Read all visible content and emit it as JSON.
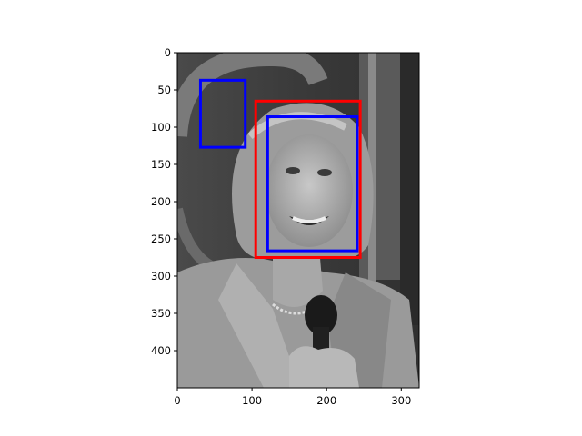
{
  "chart_data": {
    "type": "image",
    "xlim": [
      0,
      324
    ],
    "ylim": [
      450,
      0
    ],
    "x_ticks": [
      0,
      100,
      200,
      300
    ],
    "y_ticks": [
      0,
      50,
      100,
      150,
      200,
      250,
      300,
      350,
      400
    ],
    "grid": false,
    "boxes": [
      {
        "color": "#0000ff",
        "x0": 31,
        "y0": 37,
        "x1": 91,
        "y1": 127
      },
      {
        "color": "#ff0000",
        "x0": 105,
        "y0": 65,
        "x1": 245,
        "y1": 275
      },
      {
        "color": "#0000ff",
        "x0": 121,
        "y0": 86,
        "x1": 241,
        "y1": 266
      }
    ]
  },
  "photo": {
    "description": "grayscale photo of a smiling woman with shoulder-length hair holding a microphone",
    "colors": {
      "background": "#3a3a3a",
      "panel_light": "#8c8c8c",
      "hair": "#a0a0a0",
      "skin": "#b5b5b5",
      "jacket": "#9a9a9a",
      "mic": "#1a1a1a"
    }
  }
}
